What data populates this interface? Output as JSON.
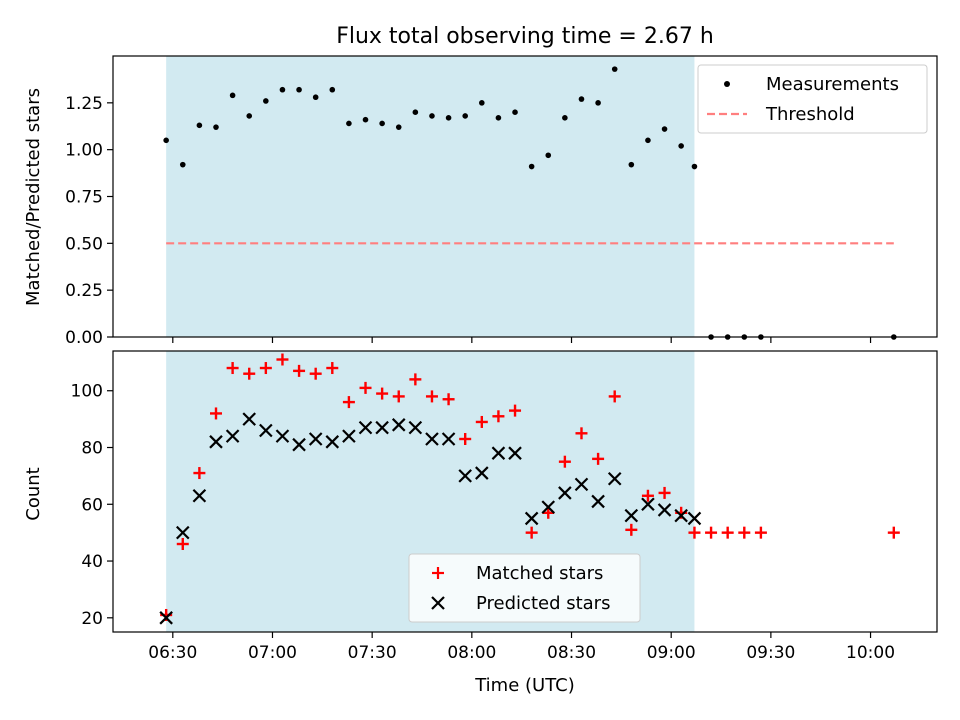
{
  "figure": {
    "title": "Flux total observing time = 2.67 h",
    "xlabel": "Time (UTC)",
    "x_tick_labels": [
      "06:30",
      "07:00",
      "07:30",
      "08:00",
      "08:30",
      "09:00",
      "09:30",
      "10:00"
    ]
  },
  "colors": {
    "shade": "#add8e6",
    "threshold": "#ff7f7f",
    "matched": "#ff0000",
    "predicted": "#000000",
    "measurement": "#000000"
  },
  "chart_data": [
    {
      "type": "scatter",
      "panel": "top",
      "title": "Flux total observing time = 2.67 h",
      "ylabel": "Matched/Predicted stars",
      "xlabel": "",
      "xlim": [
        "06:12",
        "10:20"
      ],
      "ylim": [
        0,
        1.5
      ],
      "y_tick_labels": [
        "0.00",
        "0.25",
        "0.50",
        "0.75",
        "1.00",
        "1.25"
      ],
      "y_ticks": [
        0,
        0.25,
        0.5,
        0.75,
        1.0,
        1.25
      ],
      "shaded_span": [
        "06:28",
        "09:07"
      ],
      "legend_position": "upper right",
      "series": [
        {
          "name": "Measurements",
          "style": "dot",
          "x": [
            "06:28",
            "06:33",
            "06:38",
            "06:43",
            "06:48",
            "06:53",
            "06:58",
            "07:03",
            "07:08",
            "07:13",
            "07:18",
            "07:23",
            "07:28",
            "07:33",
            "07:38",
            "07:43",
            "07:48",
            "07:53",
            "07:58",
            "08:03",
            "08:08",
            "08:13",
            "08:18",
            "08:23",
            "08:28",
            "08:33",
            "08:38",
            "08:43",
            "08:48",
            "08:53",
            "08:58",
            "09:03",
            "09:07",
            "09:12",
            "09:17",
            "09:22",
            "09:27",
            "10:07"
          ],
          "values": [
            1.05,
            0.92,
            1.13,
            1.12,
            1.29,
            1.18,
            1.26,
            1.32,
            1.32,
            1.28,
            1.32,
            1.14,
            1.16,
            1.14,
            1.12,
            1.2,
            1.18,
            1.17,
            1.18,
            1.25,
            1.17,
            1.2,
            0.91,
            0.97,
            1.17,
            1.27,
            1.25,
            1.43,
            0.92,
            1.05,
            1.11,
            1.02,
            0.91,
            0,
            0,
            0,
            0,
            0
          ]
        },
        {
          "name": "Threshold",
          "style": "dashed-line",
          "x": [
            "06:28",
            "10:07"
          ],
          "values": [
            0.5,
            0.5
          ]
        }
      ]
    },
    {
      "type": "scatter",
      "panel": "bottom",
      "ylabel": "Count",
      "xlabel": "Time (UTC)",
      "xlim": [
        "06:12",
        "10:20"
      ],
      "ylim": [
        15,
        114
      ],
      "y_tick_labels": [
        "20",
        "40",
        "60",
        "80",
        "100"
      ],
      "y_ticks": [
        20,
        40,
        60,
        80,
        100
      ],
      "shaded_span": [
        "06:28",
        "09:07"
      ],
      "legend_position": "lower center",
      "series": [
        {
          "name": "Matched stars",
          "style": "plus",
          "x": [
            "06:28",
            "06:33",
            "06:38",
            "06:43",
            "06:48",
            "06:53",
            "06:58",
            "07:03",
            "07:08",
            "07:13",
            "07:18",
            "07:23",
            "07:28",
            "07:33",
            "07:38",
            "07:43",
            "07:48",
            "07:53",
            "07:58",
            "08:03",
            "08:08",
            "08:13",
            "08:18",
            "08:23",
            "08:28",
            "08:33",
            "08:38",
            "08:43",
            "08:48",
            "08:53",
            "08:58",
            "09:03",
            "09:07",
            "09:12",
            "09:17",
            "09:22",
            "09:27",
            "10:07"
          ],
          "values": [
            21,
            46,
            71,
            92,
            108,
            106,
            108,
            111,
            107,
            106,
            108,
            96,
            101,
            99,
            98,
            104,
            98,
            97,
            83,
            89,
            91,
            93,
            50,
            57,
            75,
            85,
            76,
            98,
            51,
            63,
            64,
            57,
            50,
            50,
            50,
            50,
            50,
            50
          ]
        },
        {
          "name": "Predicted stars",
          "style": "x",
          "x": [
            "06:28",
            "06:33",
            "06:38",
            "06:43",
            "06:48",
            "06:53",
            "06:58",
            "07:03",
            "07:08",
            "07:13",
            "07:18",
            "07:23",
            "07:28",
            "07:33",
            "07:38",
            "07:43",
            "07:48",
            "07:53",
            "07:58",
            "08:03",
            "08:08",
            "08:13",
            "08:18",
            "08:23",
            "08:28",
            "08:33",
            "08:38",
            "08:43",
            "08:48",
            "08:53",
            "08:58",
            "09:03",
            "09:07"
          ],
          "values": [
            20,
            50,
            63,
            82,
            84,
            90,
            86,
            84,
            81,
            83,
            82,
            84,
            87,
            87,
            88,
            87,
            83,
            83,
            70,
            71,
            78,
            78,
            55,
            59,
            64,
            67,
            61,
            69,
            56,
            60,
            58,
            56,
            55
          ]
        }
      ]
    }
  ]
}
